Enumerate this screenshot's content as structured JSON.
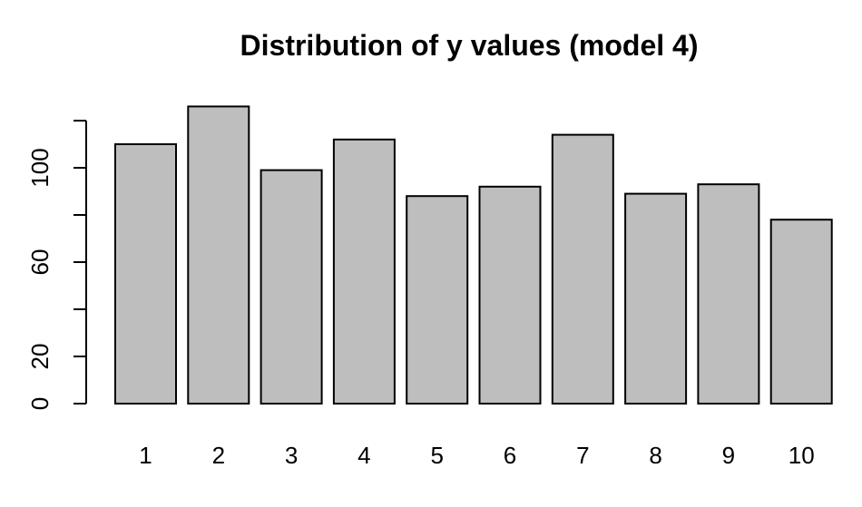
{
  "chart_data": {
    "type": "bar",
    "title": "Distribution of y values (model 4)",
    "xlabel": "",
    "ylabel": "",
    "categories": [
      "1",
      "2",
      "3",
      "4",
      "5",
      "6",
      "7",
      "8",
      "9",
      "10"
    ],
    "values": [
      110,
      126,
      99,
      112,
      88,
      92,
      114,
      89,
      93,
      78
    ],
    "ylim": [
      0,
      120
    ],
    "yticks": [
      0,
      20,
      40,
      60,
      80,
      100,
      120
    ],
    "yticklabels": [
      "0",
      "20",
      "",
      "60",
      "",
      "100",
      ""
    ],
    "grid": false,
    "colors": {
      "bar_fill": "#bebebe",
      "bar_stroke": "#000000",
      "axis": "#000000",
      "text": "#000000"
    }
  }
}
